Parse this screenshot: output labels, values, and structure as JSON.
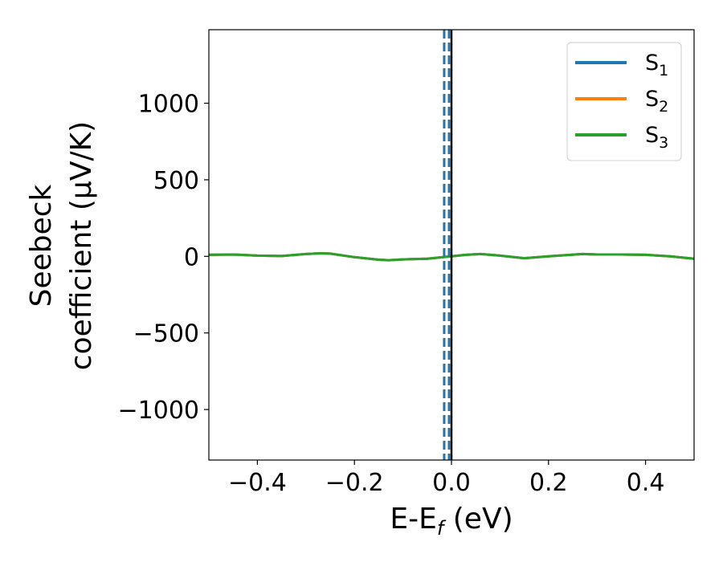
{
  "chart_data": {
    "type": "line",
    "xlabel": "E-E",
    "xlabel_sub": "f",
    "xlabel_unit": " (eV)",
    "ylabel_line1": "Seebeck",
    "ylabel_line2": "coefficient  (μV/K)",
    "xlim": [
      -0.5,
      0.5
    ],
    "ylim": [
      -1330,
      1480
    ],
    "xticks": [
      -0.4,
      -0.2,
      0.0,
      0.2,
      0.4
    ],
    "xtick_labels": [
      "−0.4",
      "−0.2",
      "0.0",
      "0.2",
      "0.4"
    ],
    "yticks": [
      -1000,
      -500,
      0,
      500,
      1000
    ],
    "ytick_labels": [
      "−1000",
      "−500",
      "0",
      "500",
      "1000"
    ],
    "grid": false,
    "legend_placement": "top-right",
    "series": [
      {
        "name": "S",
        "sub": "1",
        "color": "#1f77b4",
        "x": [
          -0.5,
          -0.45,
          -0.4,
          -0.35,
          -0.3,
          -0.27,
          -0.25,
          -0.2,
          -0.15,
          -0.13,
          -0.1,
          -0.05,
          0.0,
          0.03,
          0.06,
          0.1,
          0.15,
          0.2,
          0.27,
          0.3,
          0.35,
          0.4,
          0.45,
          0.5
        ],
        "y": [
          10,
          12,
          5,
          2,
          15,
          20,
          18,
          -5,
          -22,
          -25,
          -20,
          -15,
          0,
          10,
          15,
          5,
          -12,
          0,
          15,
          12,
          12,
          10,
          0,
          -15
        ]
      },
      {
        "name": "S",
        "sub": "2",
        "color": "#ff7f0e",
        "x": [
          -0.5,
          -0.45,
          -0.4,
          -0.35,
          -0.3,
          -0.27,
          -0.25,
          -0.2,
          -0.15,
          -0.13,
          -0.1,
          -0.05,
          0.0,
          0.03,
          0.06,
          0.1,
          0.15,
          0.2,
          0.27,
          0.3,
          0.35,
          0.4,
          0.45,
          0.5
        ],
        "y": [
          10,
          12,
          5,
          2,
          15,
          20,
          18,
          -5,
          -22,
          -25,
          -20,
          -15,
          0,
          10,
          15,
          5,
          -12,
          0,
          15,
          12,
          12,
          10,
          0,
          -15
        ]
      },
      {
        "name": "S",
        "sub": "3",
        "color": "#2ca02c",
        "x": [
          -0.5,
          -0.45,
          -0.4,
          -0.35,
          -0.3,
          -0.27,
          -0.25,
          -0.2,
          -0.15,
          -0.13,
          -0.1,
          -0.05,
          0.0,
          0.03,
          0.06,
          0.1,
          0.15,
          0.2,
          0.27,
          0.3,
          0.35,
          0.4,
          0.45,
          0.5
        ],
        "y": [
          10,
          12,
          5,
          2,
          15,
          20,
          18,
          -5,
          -22,
          -25,
          -20,
          -15,
          0,
          10,
          15,
          5,
          -12,
          0,
          15,
          12,
          12,
          10,
          0,
          -15
        ]
      }
    ],
    "vertical_lines": [
      {
        "x": 0.0,
        "color": "#000000",
        "style": "solid"
      },
      {
        "x": -0.015,
        "color": "#1f77b4",
        "style": "dashed"
      },
      {
        "x": -0.005,
        "color": "#1f77b4",
        "style": "dashed"
      }
    ]
  }
}
